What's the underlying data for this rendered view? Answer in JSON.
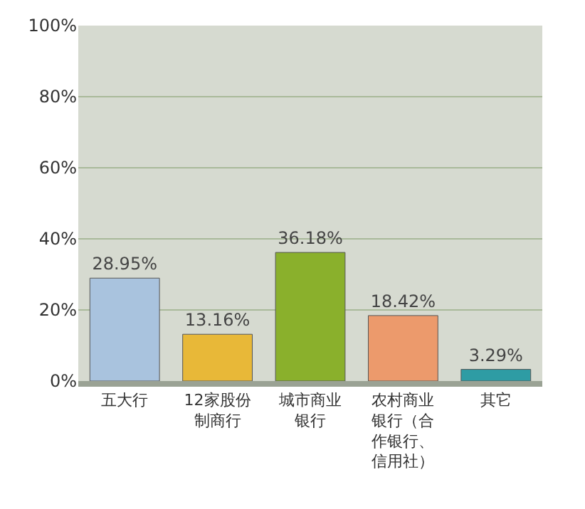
{
  "chart_data": {
    "type": "bar",
    "categories": [
      "五大行",
      "12家股份制商行",
      "城市商业银行",
      "农村商业银行（合作银行、信用社）",
      "其它"
    ],
    "values": [
      28.95,
      13.16,
      36.18,
      18.42,
      3.29
    ],
    "value_labels": [
      "28.95%",
      "13.16%",
      "36.18%",
      "18.42%",
      "3.29%"
    ],
    "colors": [
      "#a9c3de",
      "#e8b838",
      "#8ab02c",
      "#ec9a6c",
      "#2e9ca4"
    ],
    "ylim": [
      0,
      100
    ],
    "yticks": [
      {
        "value": 0,
        "label": "0%"
      },
      {
        "value": 20,
        "label": "20%"
      },
      {
        "value": 40,
        "label": "40%"
      },
      {
        "value": 60,
        "label": "60%"
      },
      {
        "value": 80,
        "label": "80%"
      },
      {
        "value": 100,
        "label": "100%"
      }
    ],
    "grid": true,
    "legend": false
  }
}
